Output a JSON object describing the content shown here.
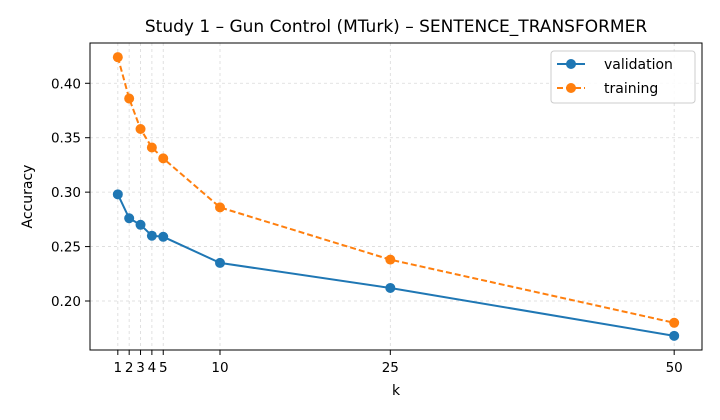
{
  "chart_data": {
    "type": "line",
    "title": "Study 1 – Gun Control (MTurk) – SENTENCE_TRANSFORMER",
    "xlabel": "k",
    "ylabel": "Accuracy",
    "x": [
      1,
      2,
      3,
      4,
      5,
      10,
      25,
      50
    ],
    "x_ticks": [
      1,
      2,
      3,
      4,
      5,
      10,
      25,
      50
    ],
    "x_tick_labels": [
      "1",
      "2",
      "3",
      "4",
      "5",
      "10",
      "25",
      "50"
    ],
    "y_ticks": [
      0.2,
      0.25,
      0.3,
      0.35,
      0.4
    ],
    "y_tick_labels": [
      "0.20",
      "0.25",
      "0.30",
      "0.35",
      "0.40"
    ],
    "xlim": [
      -1.45,
      52.45
    ],
    "ylim": [
      0.155,
      0.437
    ],
    "grid": true,
    "legend_position": "top-right",
    "series": [
      {
        "name": "validation",
        "color": "#1f77b4",
        "line_style": "solid",
        "marker": "circle",
        "values": [
          0.298,
          0.276,
          0.27,
          0.26,
          0.259,
          0.235,
          0.212,
          0.168
        ]
      },
      {
        "name": "training",
        "color": "#ff7f0e",
        "line_style": "dashed",
        "marker": "circle",
        "values": [
          0.424,
          0.386,
          0.358,
          0.341,
          0.331,
          0.286,
          0.238,
          0.18
        ]
      }
    ]
  }
}
